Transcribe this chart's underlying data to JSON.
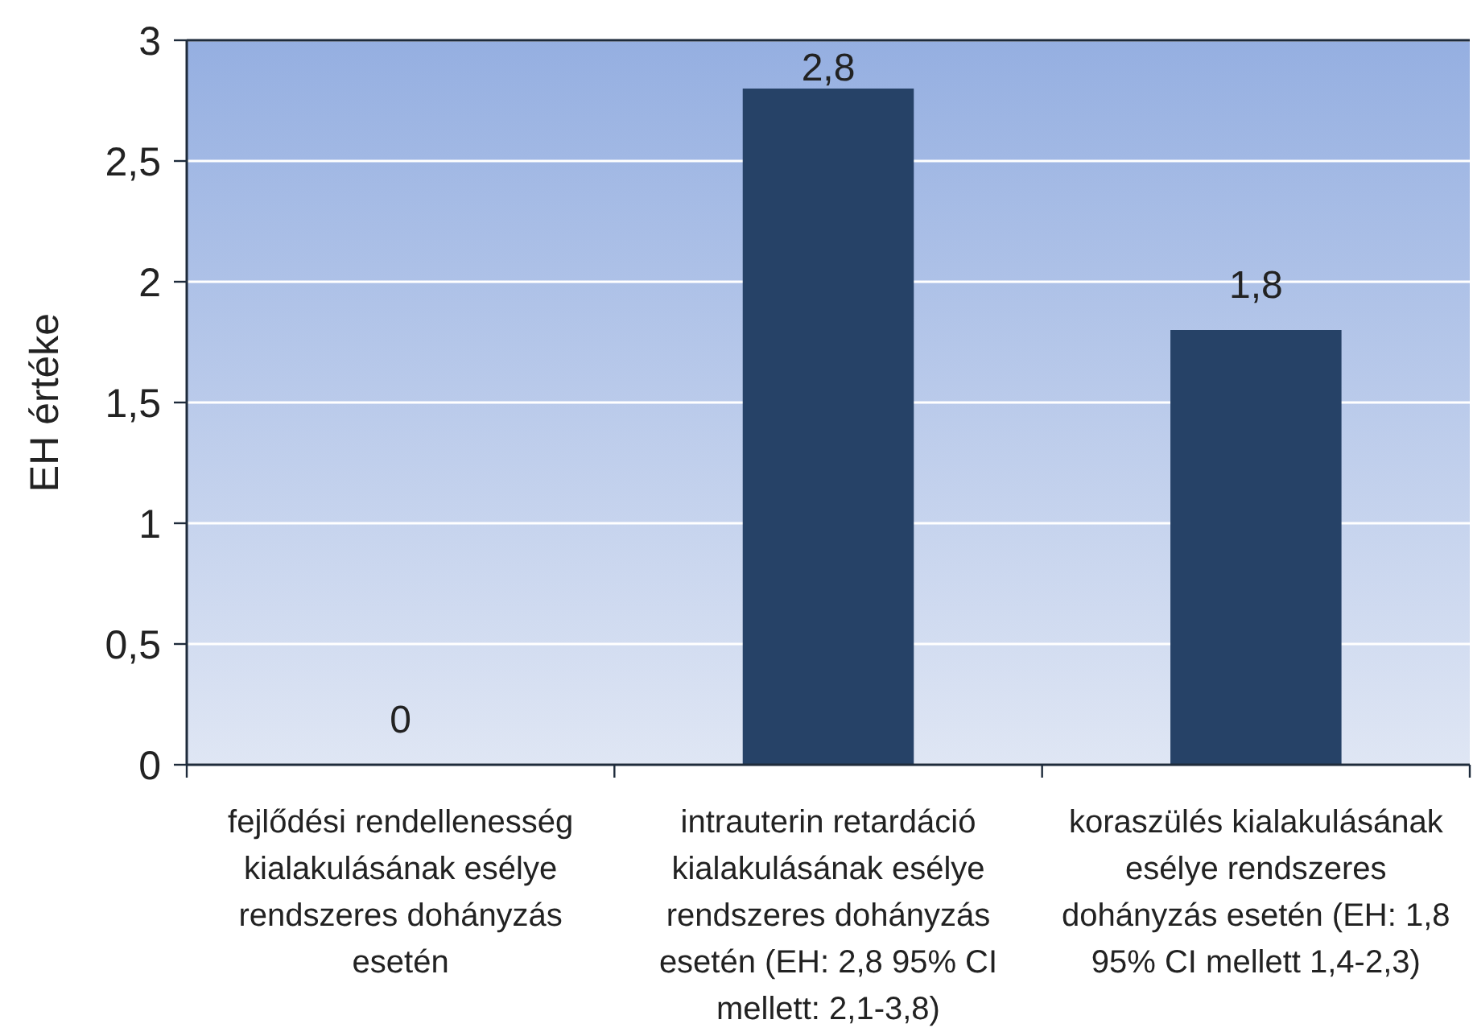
{
  "chart_data": {
    "type": "bar",
    "ylabel": "EH értéke",
    "categories": [
      "fejlődési rendellenesség kialakulásának esélye rendszeres dohányzás esetén",
      "intrauterin retardáció kialakulásának esélye rendszeres dohányzás esetén (EH: 2,8 95% CI mellett: 2,1-3,8)",
      "koraszülés kialakulásának esélye rendszeres dohányzás esetén (EH: 1,8 95% CI mellett 1,4-2,3)"
    ],
    "values": [
      0,
      2.8,
      1.8
    ],
    "color": "#264267",
    "value_labels": [
      "0",
      "2,8",
      "1,8"
    ],
    "ylim": [
      0,
      3
    ],
    "yticks": [
      0,
      {
        "value": 0.5,
        "label": "0,5"
      },
      1,
      {
        "value": 1.5,
        "label": "1,5"
      },
      2,
      {
        "value": 2.5,
        "label": "2,5"
      },
      3
    ],
    "grid": "y"
  }
}
